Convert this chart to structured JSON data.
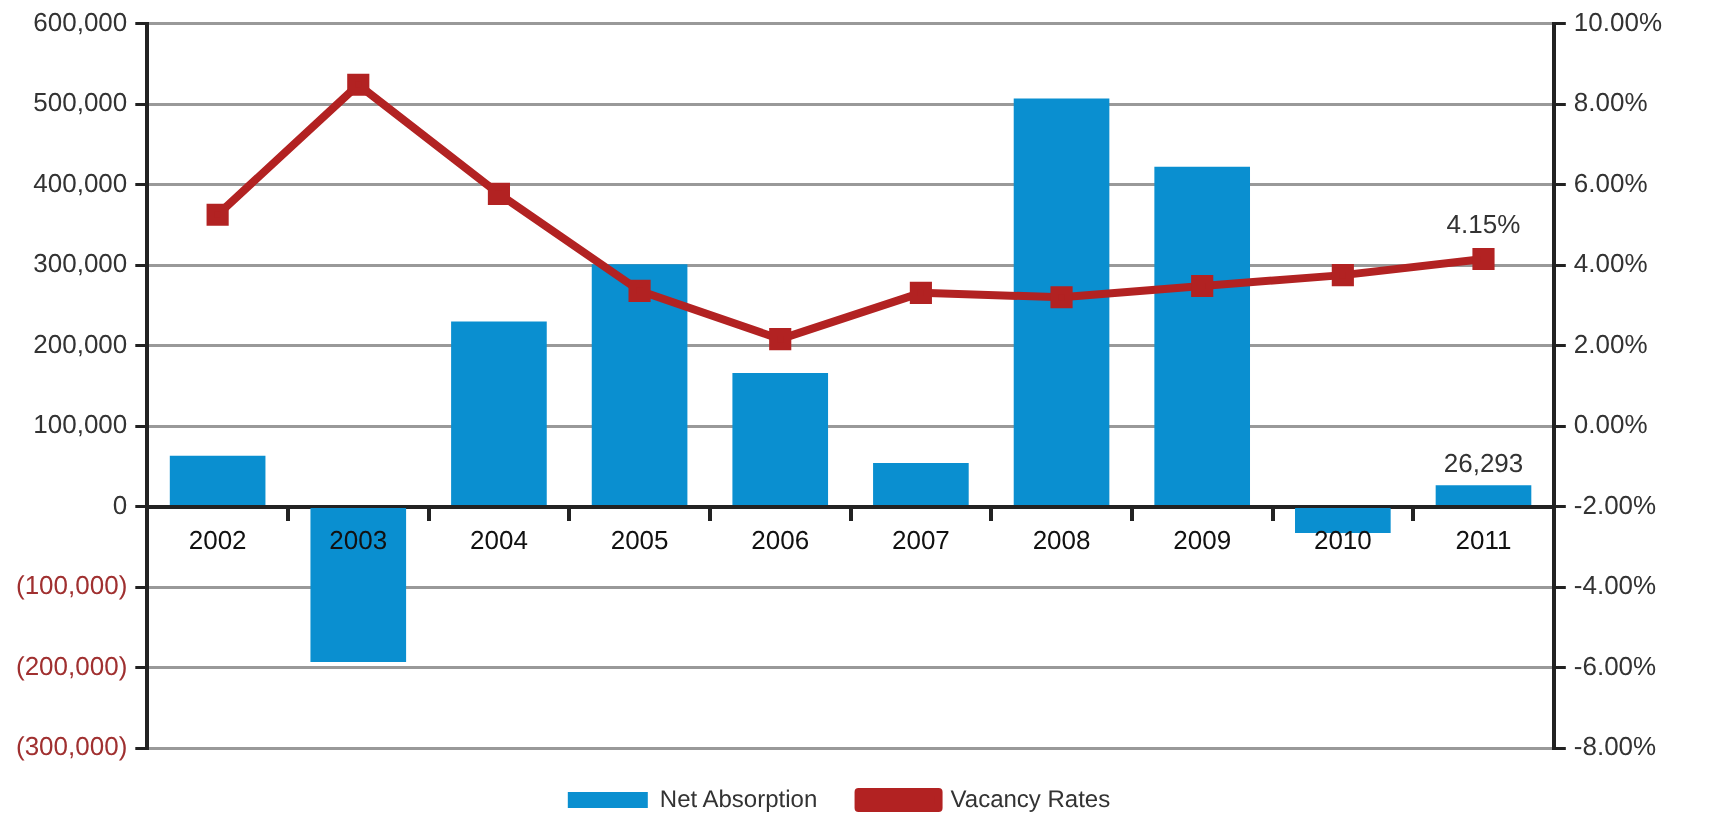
{
  "chart_data": {
    "type": "bar",
    "categories": [
      "2002",
      "2003",
      "2004",
      "2005",
      "2006",
      "2007",
      "2008",
      "2009",
      "2010",
      "2011"
    ],
    "series": [
      {
        "name": "Net Absorption",
        "color": "#0a8fd0",
        "values": [
          63000,
          -193000,
          230000,
          301000,
          166000,
          54000,
          507000,
          422000,
          -33000,
          26293
        ],
        "value_labels": [
          null,
          null,
          null,
          null,
          null,
          null,
          null,
          null,
          null,
          "26,293"
        ]
      },
      {
        "name": "Vacancy Rates",
        "type": "line",
        "axis": "y2",
        "color": "#b22222",
        "values": [
          5.25,
          8.48,
          5.77,
          3.36,
          2.16,
          3.31,
          3.2,
          3.48,
          3.75,
          4.15
        ],
        "value_labels": [
          null,
          null,
          null,
          null,
          null,
          null,
          null,
          null,
          null,
          "4.15%"
        ]
      }
    ],
    "ylim": [
      -300000,
      600000
    ],
    "yticks": [
      {
        "value": -300000,
        "label": "(300,000)"
      },
      {
        "value": -200000,
        "label": "(200,000)"
      },
      {
        "value": -100000,
        "label": "(100,000)"
      },
      0,
      {
        "value": 100000,
        "label": "100,000"
      },
      {
        "value": 200000,
        "label": "200,000"
      },
      {
        "value": 300000,
        "label": "300,000"
      },
      {
        "value": 400000,
        "label": "400,000"
      },
      {
        "value": 500000,
        "label": "500,000"
      },
      {
        "value": 600000,
        "label": "600,000"
      }
    ],
    "y2lim": [
      -8,
      10
    ],
    "y2ticks": [
      {
        "value": -8,
        "label": "-8.00%"
      },
      {
        "value": -6,
        "label": "-6.00%"
      },
      {
        "value": -4,
        "label": "-4.00%"
      },
      {
        "value": -2,
        "label": "-2.00%"
      },
      {
        "value": 0,
        "label": "0.00%"
      },
      {
        "value": 2,
        "label": "2.00%"
      },
      {
        "value": 4,
        "label": "4.00%"
      },
      {
        "value": 6,
        "label": "6.00%"
      },
      {
        "value": 8,
        "label": "8.00%"
      },
      {
        "value": 10,
        "label": "10.00%"
      }
    ],
    "grid": "y",
    "legend": "bottom",
    "marker": "square",
    "line_style": "solid"
  }
}
